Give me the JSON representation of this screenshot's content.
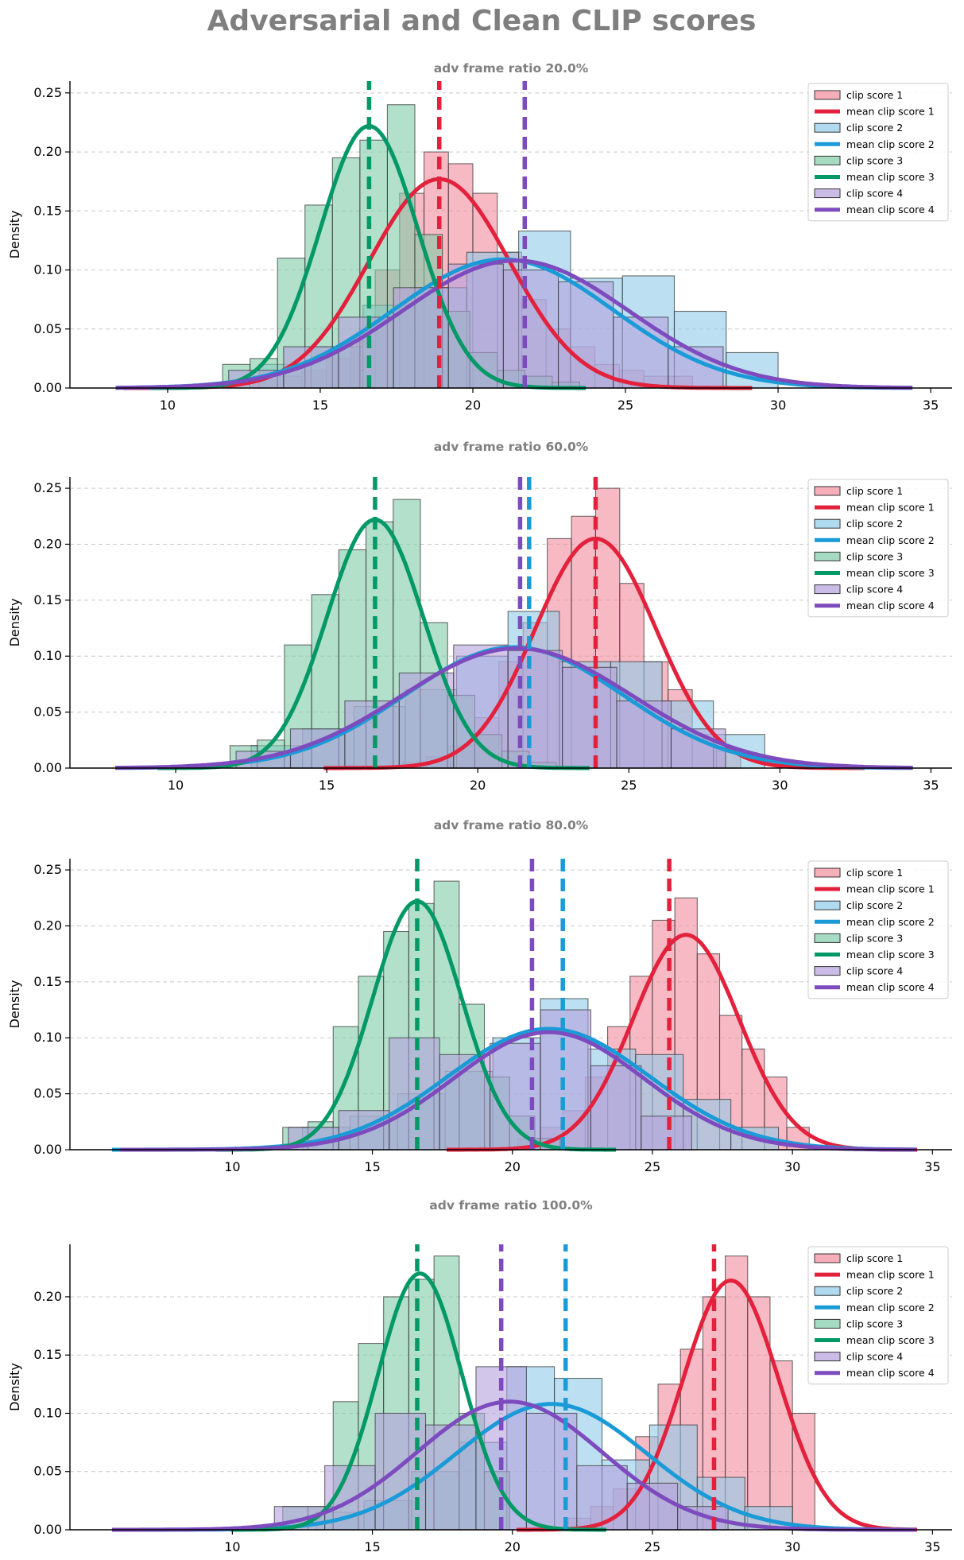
{
  "title": "Adversarial and Clean CLIP scores",
  "series_styles": [
    {
      "name": "clip score 1",
      "mean_name": "mean clip score 1",
      "color": "#e3213c",
      "fill": "#f28b9b"
    },
    {
      "name": "clip score 2",
      "mean_name": "mean clip score 2",
      "color": "#1a9bd7",
      "fill": "#8fcbea"
    },
    {
      "name": "clip score 3",
      "mean_name": "mean clip score 3",
      "color": "#029966",
      "fill": "#7fcca9"
    },
    {
      "name": "clip score 4",
      "mean_name": "mean clip score 4",
      "color": "#7d4bbe",
      "fill": "#b4a0dc"
    }
  ],
  "chart_data": [
    {
      "type": "histogram-kde",
      "title": "adv frame ratio 20.0%",
      "ylabel": "Density",
      "xlim": [
        6.8,
        35.7
      ],
      "xticks": [
        10,
        15,
        20,
        25,
        30,
        35
      ],
      "ylim": [
        0,
        0.26
      ],
      "yticks": [
        "0.00",
        "0.05",
        "0.10",
        "0.15",
        "0.20",
        "0.25"
      ],
      "legend": "top-right",
      "series": [
        {
          "name": "clip score 1",
          "mean": 18.9,
          "kde_peak": [
            18.9,
            0.177
          ],
          "kde_sigma": 2.3,
          "bins": [
            12.8,
            13.6,
            14.4,
            15.2,
            16.0,
            16.8,
            17.6,
            18.4,
            19.2,
            20.0,
            20.8,
            21.6,
            22.4,
            23.2,
            24.0,
            24.8,
            25.6,
            26.4,
            27.2
          ],
          "counts": [
            0.01,
            0.01,
            0.015,
            0.025,
            0.04,
            0.1,
            0.165,
            0.2,
            0.19,
            0.165,
            0.115,
            0.075,
            0.05,
            0.035,
            0.02,
            0.015,
            0.01,
            0.01
          ]
        },
        {
          "name": "clip score 2",
          "mean": 21.7,
          "kde_peak": [
            21.0,
            0.109
          ],
          "kde_sigma": 3.6,
          "bins": [
            13.0,
            14.7,
            16.4,
            18.1,
            19.8,
            21.5,
            23.2,
            24.9,
            26.6,
            28.3,
            30.0
          ],
          "counts": [
            0.02,
            0.035,
            0.07,
            0.085,
            0.115,
            0.133,
            0.093,
            0.095,
            0.065,
            0.03
          ]
        },
        {
          "name": "clip score 3",
          "mean": 16.6,
          "kde_peak": [
            16.6,
            0.222
          ],
          "kde_sigma": 1.6,
          "bins": [
            11.8,
            12.7,
            13.6,
            14.5,
            15.4,
            16.3,
            17.2,
            18.1,
            19.0,
            19.9,
            20.8,
            21.7,
            22.6,
            23.5
          ],
          "counts": [
            0.02,
            0.025,
            0.11,
            0.155,
            0.195,
            0.21,
            0.24,
            0.13,
            0.065,
            0.03,
            0.015,
            0.01,
            0.005
          ]
        },
        {
          "name": "clip score 4",
          "mean": 21.7,
          "kde_peak": [
            21.4,
            0.108
          ],
          "kde_sigma": 3.7,
          "bins": [
            12.0,
            13.8,
            15.6,
            17.4,
            19.2,
            21.0,
            22.8,
            24.6,
            26.4,
            28.2
          ],
          "counts": [
            0.015,
            0.035,
            0.06,
            0.085,
            0.105,
            0.1,
            0.09,
            0.06,
            0.035
          ]
        }
      ]
    },
    {
      "type": "histogram-kde",
      "title": "adv frame ratio 60.0%",
      "ylabel": "Density",
      "xlim": [
        6.5,
        35.7
      ],
      "xticks": [
        10,
        15,
        20,
        25,
        30,
        35
      ],
      "ylim": [
        0,
        0.26
      ],
      "yticks": [
        "0.00",
        "0.05",
        "0.10",
        "0.15",
        "0.20",
        "0.25"
      ],
      "legend": "top-right",
      "series": [
        {
          "name": "clip score 1",
          "mean": 23.9,
          "kde_peak": [
            23.9,
            0.205
          ],
          "kde_sigma": 2.0,
          "bins": [
            17.5,
            18.3,
            19.1,
            19.9,
            20.7,
            21.5,
            22.3,
            23.1,
            23.9,
            24.7,
            25.5,
            26.3,
            27.1,
            27.9,
            28.7
          ],
          "counts": [
            0.005,
            0.01,
            0.02,
            0.045,
            0.095,
            0.13,
            0.205,
            0.225,
            0.25,
            0.165,
            0.095,
            0.07,
            0.03,
            0.015
          ]
        },
        {
          "name": "clip score 2",
          "mean": 21.7,
          "kde_peak": [
            21.2,
            0.108
          ],
          "kde_sigma": 3.6,
          "bins": [
            12.5,
            14.2,
            15.9,
            17.6,
            19.3,
            21.0,
            22.7,
            24.4,
            26.1,
            27.8,
            29.5
          ],
          "counts": [
            0.02,
            0.035,
            0.055,
            0.07,
            0.1,
            0.14,
            0.095,
            0.095,
            0.06,
            0.03
          ]
        },
        {
          "name": "clip score 3",
          "mean": 16.6,
          "kde_peak": [
            16.6,
            0.222
          ],
          "kde_sigma": 1.6,
          "bins": [
            11.8,
            12.7,
            13.6,
            14.5,
            15.4,
            16.3,
            17.2,
            18.1,
            19.0,
            19.9,
            20.8,
            21.7,
            22.6
          ],
          "counts": [
            0.02,
            0.025,
            0.11,
            0.155,
            0.195,
            0.22,
            0.24,
            0.13,
            0.065,
            0.03,
            0.015,
            0.005
          ]
        },
        {
          "name": "clip score 4",
          "mean": 21.4,
          "kde_peak": [
            21.3,
            0.107
          ],
          "kde_sigma": 3.8,
          "bins": [
            12.0,
            13.8,
            15.6,
            17.4,
            19.2,
            21.0,
            22.8,
            24.6,
            26.4,
            28.2
          ],
          "counts": [
            0.015,
            0.035,
            0.06,
            0.085,
            0.11,
            0.105,
            0.09,
            0.06,
            0.035
          ]
        }
      ]
    },
    {
      "type": "histogram-kde",
      "title": "adv frame ratio 80.0%",
      "ylabel": "Density",
      "xlim": [
        4.2,
        35.7
      ],
      "xticks": [
        10,
        15,
        20,
        25,
        30,
        35
      ],
      "ylim": [
        0,
        0.26
      ],
      "yticks": [
        "0.00",
        "0.05",
        "0.10",
        "0.15",
        "0.20",
        "0.25"
      ],
      "legend": "top-right",
      "series": [
        {
          "name": "clip score 1",
          "mean": 25.6,
          "kde_peak": [
            26.2,
            0.192
          ],
          "kde_sigma": 1.9,
          "bins": [
            20.2,
            21.0,
            21.8,
            22.6,
            23.4,
            24.2,
            25.0,
            25.8,
            26.6,
            27.4,
            28.2,
            29.0,
            29.8,
            30.6
          ],
          "counts": [
            0.01,
            0.02,
            0.035,
            0.065,
            0.11,
            0.155,
            0.205,
            0.225,
            0.175,
            0.12,
            0.09,
            0.065,
            0.02
          ]
        },
        {
          "name": "clip score 2",
          "mean": 21.8,
          "kde_peak": [
            21.3,
            0.108
          ],
          "kde_sigma": 3.6,
          "bins": [
            12.5,
            14.2,
            15.9,
            17.6,
            19.3,
            21.0,
            22.7,
            24.4,
            26.1,
            27.8,
            29.5
          ],
          "counts": [
            0.02,
            0.03,
            0.05,
            0.07,
            0.1,
            0.135,
            0.09,
            0.085,
            0.045,
            0.02
          ]
        },
        {
          "name": "clip score 3",
          "mean": 16.6,
          "kde_peak": [
            16.6,
            0.222
          ],
          "kde_sigma": 1.6,
          "bins": [
            11.8,
            12.7,
            13.6,
            14.5,
            15.4,
            16.3,
            17.2,
            18.1,
            19.0,
            19.9,
            20.8,
            21.7
          ],
          "counts": [
            0.02,
            0.025,
            0.11,
            0.155,
            0.195,
            0.22,
            0.24,
            0.13,
            0.065,
            0.03,
            0.01
          ]
        },
        {
          "name": "clip score 4",
          "mean": 20.7,
          "kde_peak": [
            21.3,
            0.105
          ],
          "kde_sigma": 3.4,
          "bins": [
            12.0,
            13.8,
            15.6,
            17.4,
            19.2,
            21.0,
            22.8,
            24.6,
            26.4
          ],
          "counts": [
            0.02,
            0.035,
            0.1,
            0.085,
            0.095,
            0.125,
            0.075,
            0.03
          ]
        }
      ]
    },
    {
      "type": "histogram-kde",
      "title": "adv frame ratio 100.0%",
      "ylabel": "Density",
      "xlim": [
        4.2,
        35.7
      ],
      "xticks": [
        10,
        15,
        20,
        25,
        30,
        35
      ],
      "ylim": [
        0,
        0.245
      ],
      "yticks": [
        "0.00",
        "0.05",
        "0.10",
        "0.15",
        "0.20"
      ],
      "legend": "top-right",
      "series": [
        {
          "name": "clip score 1",
          "mean": 27.2,
          "kde_peak": [
            27.8,
            0.214
          ],
          "kde_sigma": 1.7,
          "bins": [
            22.0,
            22.8,
            23.6,
            24.4,
            25.2,
            26.0,
            26.8,
            27.6,
            28.4,
            29.2,
            30.0,
            30.8
          ],
          "counts": [
            0.01,
            0.02,
            0.035,
            0.08,
            0.125,
            0.155,
            0.2,
            0.235,
            0.2,
            0.145,
            0.1,
            0.08
          ]
        },
        {
          "name": "clip score 2",
          "mean": 21.9,
          "kde_peak": [
            21.4,
            0.108
          ],
          "kde_sigma": 3.4,
          "bins": [
            13.0,
            14.7,
            16.4,
            18.1,
            19.8,
            21.5,
            23.2,
            24.9,
            26.6,
            28.3,
            30.0
          ],
          "counts": [
            0.015,
            0.025,
            0.05,
            0.075,
            0.14,
            0.13,
            0.06,
            0.09,
            0.045,
            0.02
          ]
        },
        {
          "name": "clip score 3",
          "mean": 16.6,
          "kde_peak": [
            16.7,
            0.22
          ],
          "kde_sigma": 1.5,
          "bins": [
            11.8,
            12.7,
            13.6,
            14.5,
            15.4,
            16.3,
            17.2,
            18.1,
            19.0,
            19.9
          ],
          "counts": [
            0.02,
            0.02,
            0.11,
            0.16,
            0.2,
            0.215,
            0.235,
            0.1,
            0.05
          ]
        },
        {
          "name": "clip score 4",
          "mean": 19.6,
          "kde_peak": [
            19.9,
            0.11
          ],
          "kde_sigma": 3.3,
          "bins": [
            11.5,
            13.3,
            15.1,
            16.9,
            18.7,
            20.5,
            22.3,
            24.1,
            25.9,
            27.7
          ],
          "counts": [
            0.02,
            0.055,
            0.1,
            0.09,
            0.14,
            0.1,
            0.055,
            0.04,
            0.02
          ]
        }
      ]
    }
  ]
}
